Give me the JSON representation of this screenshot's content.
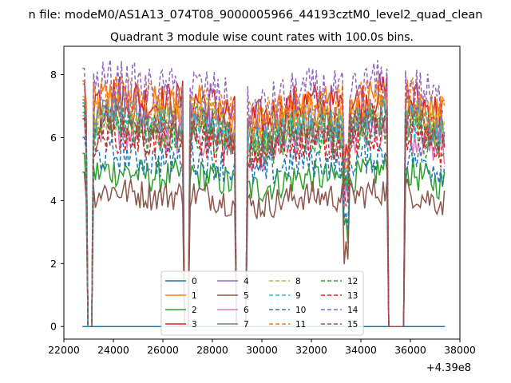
{
  "chart_data": {
    "type": "line",
    "suptitle": "n file: modeM0/AS1A13_074T08_9000005966_44193cztM0_level2_quad_clean",
    "title": "Quadrant 3 module wise count rates with 100.0s bins.",
    "xlabel": "",
    "ylabel": "",
    "x_offset_label": "+4.39e8",
    "xlim": [
      22000,
      38000
    ],
    "ylim": [
      -0.4,
      8.9
    ],
    "x_ticks": [
      22000,
      24000,
      26000,
      28000,
      30000,
      32000,
      34000,
      36000,
      38000
    ],
    "x_tick_labels": [
      "22000",
      "24000",
      "26000",
      "28000",
      "30000",
      "32000",
      "34000",
      "36000",
      "38000"
    ],
    "y_ticks": [
      0,
      2,
      4,
      6,
      8
    ],
    "y_tick_labels": [
      "0",
      "2",
      "4",
      "6",
      "8"
    ],
    "grid": false,
    "legend_placement": "lower-center",
    "gaps_seconds": [
      [
        22900,
        23150
      ],
      [
        26850,
        27050
      ],
      [
        28950,
        29420
      ],
      [
        35050,
        35800
      ]
    ],
    "segment_seconds": [
      [
        22750,
        22900
      ],
      [
        23150,
        26850
      ],
      [
        27050,
        28950
      ],
      [
        29420,
        35050
      ],
      [
        35800,
        37400
      ]
    ],
    "series": [
      {
        "name": "0",
        "color": "#1f77b4",
        "dash": "solid",
        "level": 0.0
      },
      {
        "name": "1",
        "color": "#ff7f0e",
        "dash": "solid",
        "level": 6.9
      },
      {
        "name": "2",
        "color": "#2ca02c",
        "dash": "solid",
        "level": 4.7
      },
      {
        "name": "3",
        "color": "#d62728",
        "dash": "solid",
        "level": 7.0
      },
      {
        "name": "4",
        "color": "#9467bd",
        "dash": "solid",
        "level": 6.4
      },
      {
        "name": "5",
        "color": "#8c564b",
        "dash": "solid",
        "level": 4.1
      },
      {
        "name": "6",
        "color": "#e377c2",
        "dash": "solid",
        "level": 5.9
      },
      {
        "name": "7",
        "color": "#7f7f7f",
        "dash": "solid",
        "level": 6.3
      },
      {
        "name": "8",
        "color": "#bcbd22",
        "dash": "dashed",
        "level": 6.5
      },
      {
        "name": "9",
        "color": "#17becf",
        "dash": "dashed",
        "level": 6.3
      },
      {
        "name": "10",
        "color": "#1f77b4",
        "dash": "dashed",
        "level": 5.2
      },
      {
        "name": "11",
        "color": "#ff7f0e",
        "dash": "dashed",
        "level": 7.0
      },
      {
        "name": "12",
        "color": "#2ca02c",
        "dash": "dashed",
        "level": 6.0
      },
      {
        "name": "13",
        "color": "#d62728",
        "dash": "dashed",
        "level": 5.8
      },
      {
        "name": "14",
        "color": "#9467bd",
        "dash": "dashed",
        "level": 7.4
      },
      {
        "name": "15",
        "color": "#8c564b",
        "dash": "dashed",
        "level": 6.2
      }
    ]
  }
}
